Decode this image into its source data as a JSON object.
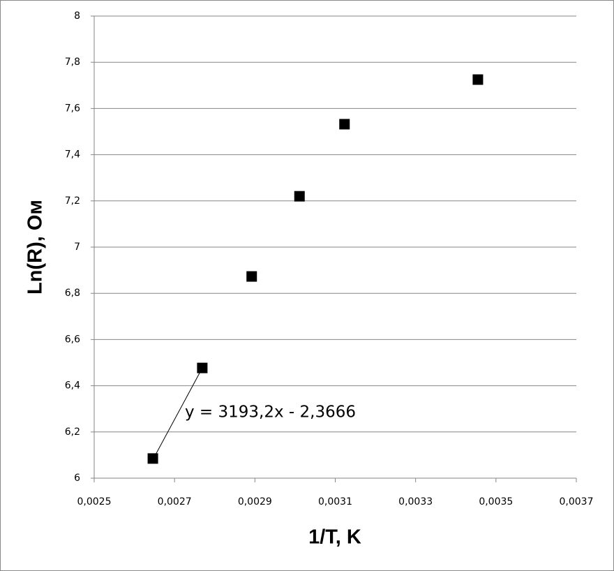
{
  "chart_data": {
    "type": "scatter",
    "x_label": "1/T,  K",
    "y_label": "Ln(R), Ом",
    "annotation": "y = 3193,2x - 2,3666",
    "series": [
      {
        "color": "#000000",
        "x": [
          0.002646,
          0.002769,
          0.002892,
          0.003011,
          0.003123,
          0.003455
        ],
        "values": [
          6.085,
          6.477,
          6.873,
          7.22,
          7.532,
          7.725
        ]
      }
    ],
    "xlim": [
      0.0025,
      0.0037
    ],
    "xticks": [
      {
        "value": 0.0025,
        "label": "0,0025"
      },
      {
        "value": 0.0027,
        "label": "0,0027"
      },
      {
        "value": 0.0029,
        "label": "0,0029"
      },
      {
        "value": 0.0031,
        "label": "0,0031"
      },
      {
        "value": 0.0033,
        "label": "0,0033"
      },
      {
        "value": 0.0035,
        "label": "0,0035"
      },
      {
        "value": 0.0037,
        "label": "0,0037"
      }
    ],
    "ylim": [
      6,
      8
    ],
    "yticks": [
      6,
      {
        "value": 6.2,
        "label": "6,2"
      },
      {
        "value": 6.4,
        "label": "6,4"
      },
      {
        "value": 6.6,
        "label": "6,6"
      },
      {
        "value": 6.8,
        "label": "6,8"
      },
      7,
      {
        "value": 7.2,
        "label": "7,2"
      },
      {
        "value": 7.4,
        "label": "7,4"
      },
      {
        "value": 7.6,
        "label": "7,6"
      },
      {
        "value": 7.8,
        "label": "7,8"
      },
      8
    ],
    "grid": true
  }
}
